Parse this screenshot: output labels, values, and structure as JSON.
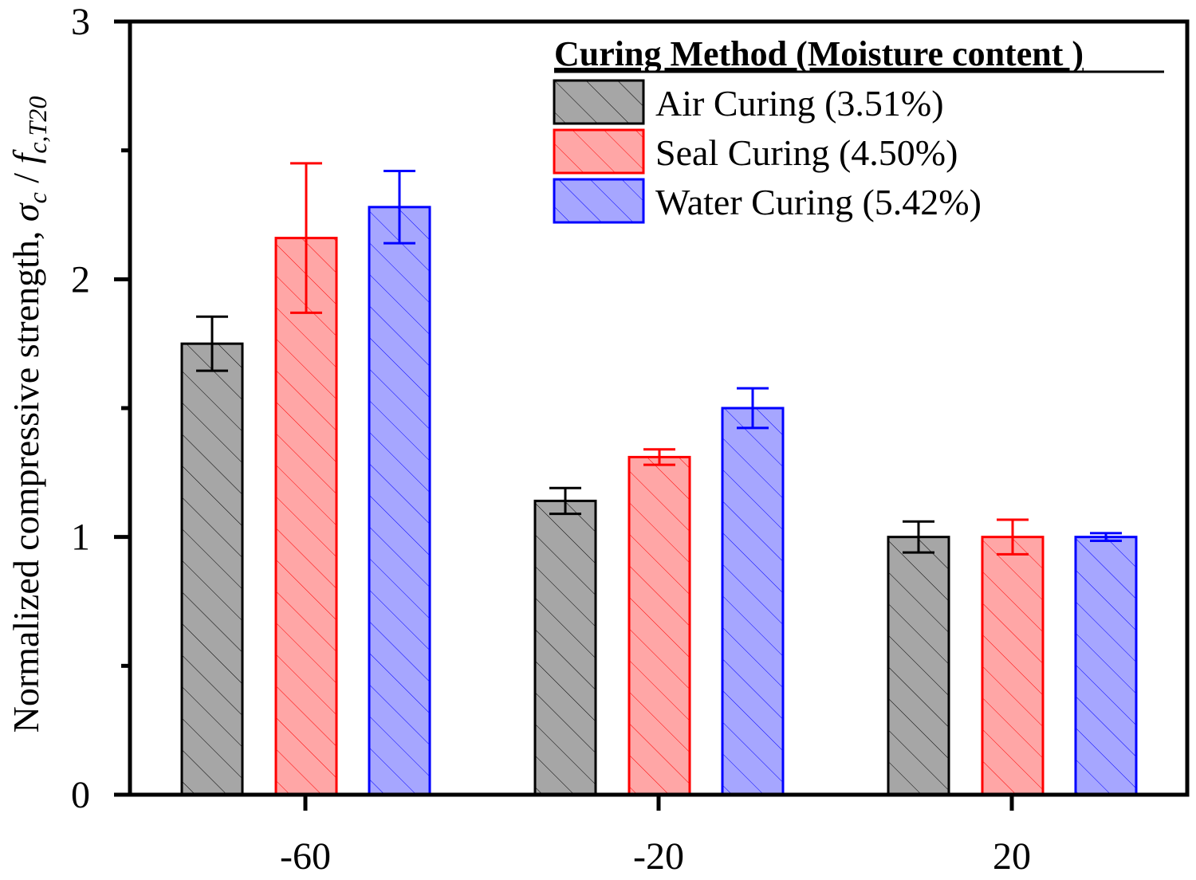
{
  "chart_data": {
    "type": "bar",
    "title": "",
    "xlabel": "",
    "ylabel": "Normalized compressive strength, ",
    "ylabel_math": {
      "sigma": "σ",
      "sub_c": "c",
      "slash": " / ",
      "f": "f",
      "sub_f": "c,T20"
    },
    "categories": [
      "-60",
      "-20",
      "20"
    ],
    "ylim": [
      0,
      3
    ],
    "yticks": [
      "0",
      "1",
      "2",
      "3"
    ],
    "grid": false,
    "legend_title": "Curing Method (Moisture content )",
    "legend_position": "top-right",
    "series": [
      {
        "name": "Air Curing (3.51%)",
        "values": [
          1.75,
          1.14,
          1.0
        ],
        "errors": [
          0.105,
          0.05,
          0.06
        ],
        "fill": "#a6a6a6",
        "stroke": "#000000"
      },
      {
        "name": "Seal Curing (4.50%)",
        "values": [
          2.16,
          1.31,
          1.0
        ],
        "errors": [
          0.29,
          0.03,
          0.067
        ],
        "fill": "#ffa6a6",
        "stroke": "#ff0000"
      },
      {
        "name": "Water Curing (5.42%)",
        "values": [
          2.28,
          1.5,
          1.0
        ],
        "errors": [
          0.14,
          0.077,
          0.015
        ],
        "fill": "#a6a6ff",
        "stroke": "#0000ff"
      }
    ]
  }
}
